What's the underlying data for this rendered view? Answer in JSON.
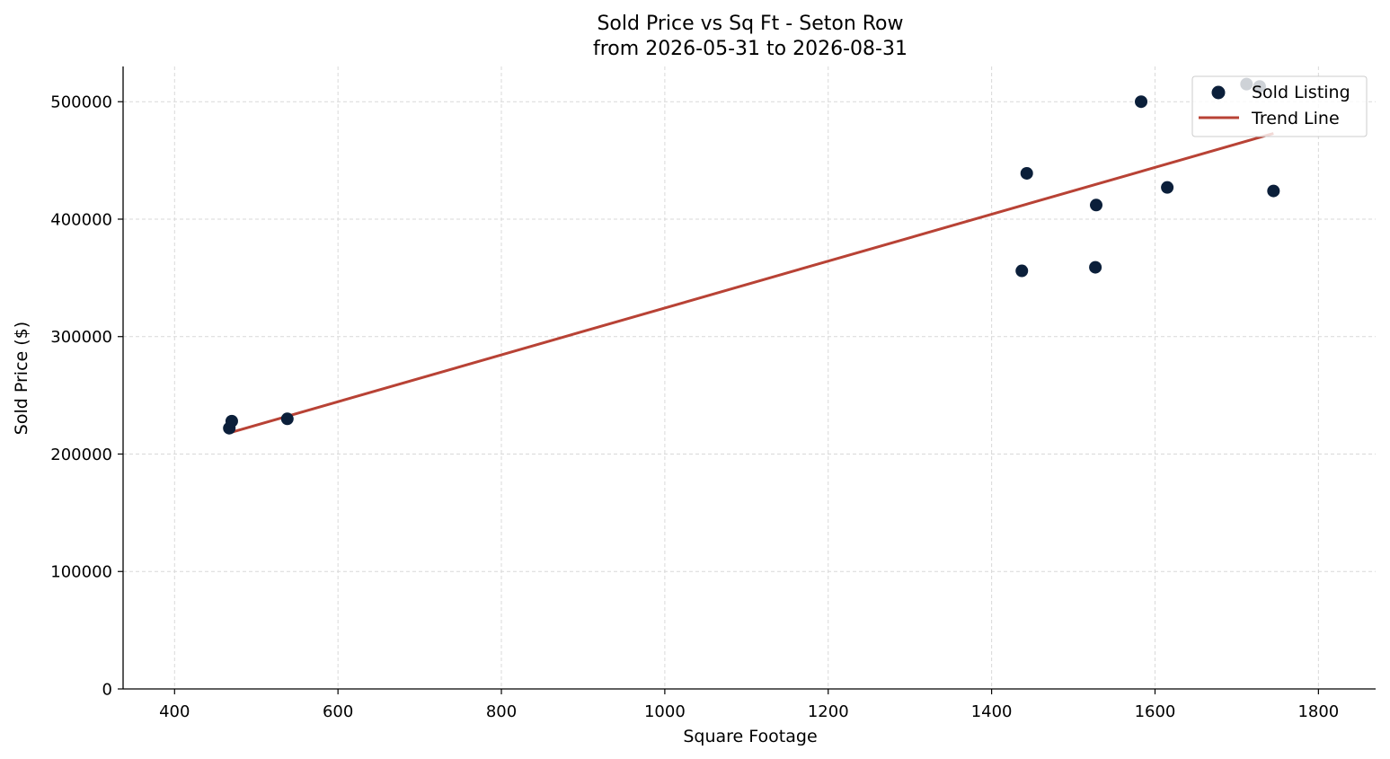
{
  "chart_data": {
    "type": "scatter",
    "title": "Sold Price vs Sq Ft - Seton Row",
    "subtitle": "from 2026-05-31 to 2026-08-31",
    "xlabel": "Square Footage",
    "ylabel": "Sold Price ($)",
    "xlim": [
      337,
      1870
    ],
    "ylim": [
      0,
      530000
    ],
    "x_ticks": [
      400,
      600,
      800,
      1000,
      1200,
      1400,
      1600,
      1800
    ],
    "y_ticks": [
      0,
      100000,
      200000,
      300000,
      400000,
      500000
    ],
    "grid": true,
    "legend_position": "top-right",
    "series": [
      {
        "name": "Sold Listing",
        "kind": "scatter",
        "color": "#0b1f3a",
        "points": [
          {
            "x": 467,
            "y": 222000
          },
          {
            "x": 470,
            "y": 228000
          },
          {
            "x": 538,
            "y": 230000
          },
          {
            "x": 1437,
            "y": 356000
          },
          {
            "x": 1443,
            "y": 439000
          },
          {
            "x": 1527,
            "y": 359000
          },
          {
            "x": 1528,
            "y": 412000
          },
          {
            "x": 1583,
            "y": 500000
          },
          {
            "x": 1615,
            "y": 427000
          },
          {
            "x": 1712,
            "y": 515000
          },
          {
            "x": 1728,
            "y": 513000
          },
          {
            "x": 1745,
            "y": 424000
          }
        ]
      },
      {
        "name": "Trend Line",
        "kind": "line",
        "color": "#b84235",
        "points": [
          {
            "x": 467,
            "y": 218000
          },
          {
            "x": 1745,
            "y": 473000
          }
        ]
      }
    ]
  }
}
